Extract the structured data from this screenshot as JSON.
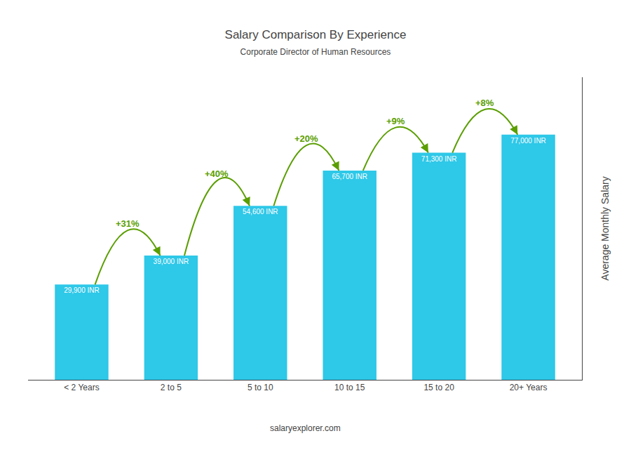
{
  "chart_data": {
    "type": "bar",
    "title": "Salary Comparison By Experience",
    "subtitle": "Corporate Director of Human Resources",
    "categories": [
      "< 2 Years",
      "2 to 5",
      "5 to 10",
      "10 to 15",
      "15 to 20",
      "20+ Years"
    ],
    "values": [
      29900,
      39000,
      54600,
      65700,
      71300,
      77000
    ],
    "value_labels": [
      "29,900 INR",
      "39,000 INR",
      "54,600 INR",
      "65,700 INR",
      "71,300 INR",
      "77,000 INR"
    ],
    "data_labels": true,
    "annotations": [
      "+31%",
      "+40%",
      "+20%",
      "+9%",
      "+8%"
    ],
    "ylabel": "Average Monthly Salary",
    "footer": "salaryexplorer.com",
    "color": "#2ec8e8",
    "ylim": [
      0,
      95000
    ],
    "tick_labels": "x",
    "grid": false
  }
}
